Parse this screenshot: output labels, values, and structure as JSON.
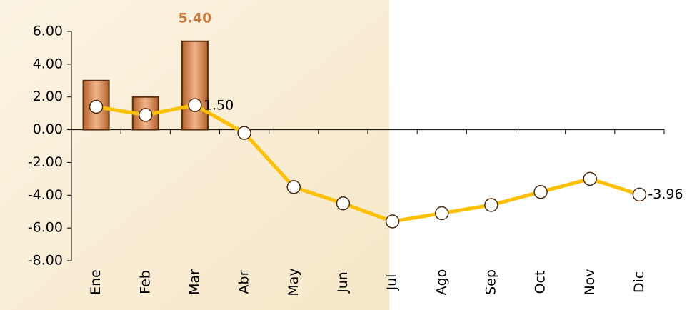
{
  "chart_data": {
    "type": "combo",
    "categories": [
      "Ene",
      "Feb",
      "Mar",
      "Abr",
      "May",
      "Jun",
      "Jul",
      "Ago",
      "Sep",
      "Oct",
      "Nov",
      "Dic"
    ],
    "series": [
      {
        "type": "bar",
        "color": "#c87a3e",
        "values": [
          3.0,
          2.0,
          5.4,
          null,
          null,
          null,
          null,
          null,
          null,
          null,
          null,
          null
        ],
        "value_labels": [
          null,
          null,
          "5.40",
          null,
          null,
          null,
          null,
          null,
          null,
          null,
          null,
          null
        ]
      },
      {
        "type": "line",
        "color": "#ffc000",
        "values": [
          1.4,
          0.9,
          1.5,
          -0.2,
          -3.5,
          -4.5,
          -5.6,
          -5.1,
          -4.6,
          -3.8,
          -3.0,
          -3.96
        ],
        "value_labels": [
          null,
          null,
          "1.50",
          null,
          null,
          null,
          null,
          null,
          null,
          null,
          null,
          "-3.96"
        ]
      }
    ],
    "ylim": [
      -8,
      6
    ],
    "yticks": [
      {
        "value": -8,
        "label": "-8.00"
      },
      {
        "value": -6,
        "label": "-6.00"
      },
      {
        "value": -4,
        "label": "-4.00"
      },
      {
        "value": -2,
        "label": "-2.00"
      },
      {
        "value": 0,
        "label": "0.00"
      },
      {
        "value": 2,
        "label": "2.00"
      },
      {
        "value": 4,
        "label": "4.00"
      },
      {
        "value": 6,
        "label": "6.00"
      }
    ]
  }
}
